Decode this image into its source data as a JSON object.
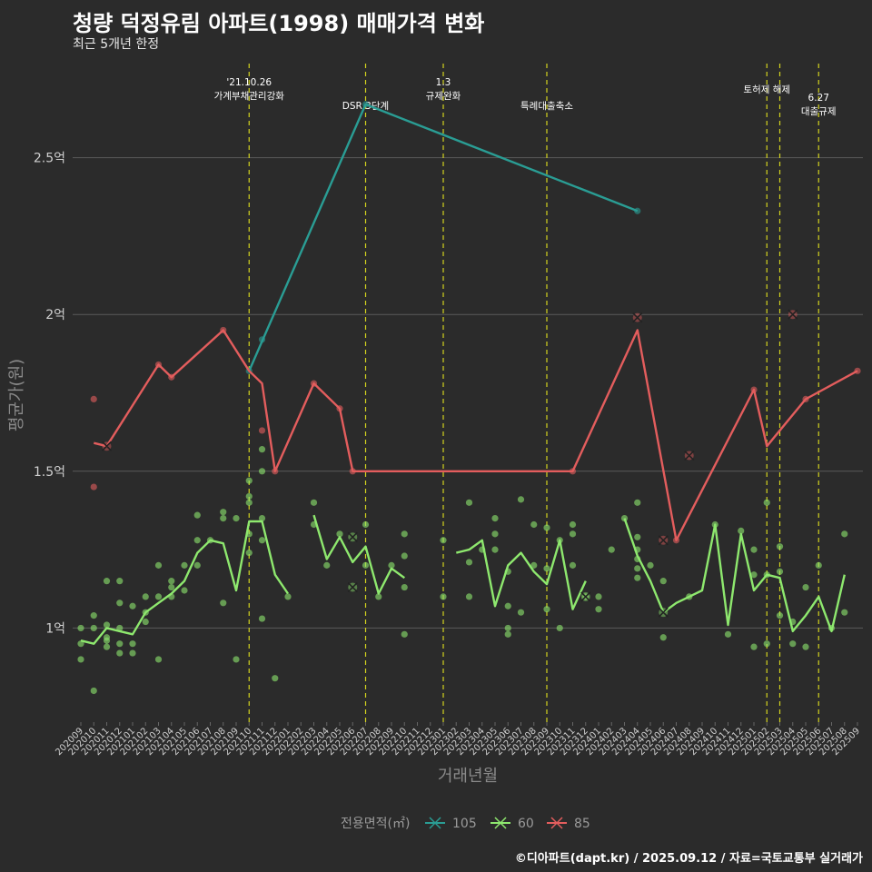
{
  "header": {
    "title": "청량 덕정유림 아파트(1998) 매매가격 변화",
    "subtitle": "최근 5개년 한정"
  },
  "footer": "©디아파트(dapt.kr) / 2025.09.12 / 자료=국토교통부 실거래가",
  "chart_data": {
    "type": "line",
    "xlabel": "거래년월",
    "ylabel": "평균가(원)",
    "ylim": [
      0.7,
      2.8
    ],
    "yticks": [
      {
        "v": 1.0,
        "label": "1억"
      },
      {
        "v": 1.5,
        "label": "1.5억"
      },
      {
        "v": 2.0,
        "label": "2억"
      },
      {
        "v": 2.5,
        "label": "2.5억"
      }
    ],
    "categories": [
      "202009",
      "202010",
      "202011",
      "202012",
      "202101",
      "202102",
      "202103",
      "202104",
      "202105",
      "202106",
      "202107",
      "202108",
      "202109",
      "202110",
      "202111",
      "202112",
      "202201",
      "202202",
      "202203",
      "202204",
      "202205",
      "202206",
      "202207",
      "202208",
      "202209",
      "202210",
      "202211",
      "202212",
      "202301",
      "202302",
      "202303",
      "202304",
      "202305",
      "202306",
      "202307",
      "202308",
      "202309",
      "202310",
      "202311",
      "202312",
      "202401",
      "202402",
      "202403",
      "202404",
      "202405",
      "202406",
      "202407",
      "202408",
      "202409",
      "202410",
      "202411",
      "202412",
      "202501",
      "202502",
      "202503",
      "202504",
      "202505",
      "202506",
      "202507",
      "202508",
      "202509"
    ],
    "annotations": [
      {
        "x": "202110",
        "lines": [
          "'21.10.26",
          "가계부채관리강화"
        ],
        "level": 0
      },
      {
        "x": "202207",
        "lines": [
          "DSR 3단계"
        ],
        "level": 2
      },
      {
        "x": "202301",
        "lines": [
          "1.3",
          "규제완화"
        ],
        "level": 0
      },
      {
        "x": "202309",
        "lines": [
          "특례대출축소"
        ],
        "level": 2
      },
      {
        "x": "202502",
        "lines": [
          "토허제 해제"
        ],
        "level": 1
      },
      {
        "x": "202503",
        "lines": [],
        "level": 0
      },
      {
        "x": "202506",
        "lines": [
          "6.27",
          "대출규제"
        ],
        "level": 3
      }
    ],
    "legend": {
      "title": "전용면적(㎡)",
      "position": "bottom"
    },
    "series": [
      {
        "name": "105",
        "color": "#2a9d94",
        "line": [
          [
            "202110",
            1.82
          ],
          [
            "202207",
            2.67
          ],
          [
            "202404",
            2.33
          ]
        ],
        "points": [
          [
            "202110",
            1.82
          ],
          [
            "202111",
            1.92
          ],
          [
            "202207",
            2.67
          ],
          [
            "202404",
            2.33
          ]
        ],
        "crosses": []
      },
      {
        "name": "60",
        "color": "#8ee86e",
        "line": [
          [
            "202009",
            0.96
          ],
          [
            "202010",
            0.95
          ],
          [
            "202011",
            1.0
          ],
          [
            "202012",
            0.99
          ],
          [
            "202101",
            0.98
          ],
          [
            "202102",
            1.05
          ],
          [
            "202103",
            1.08
          ],
          [
            "202104",
            1.11
          ],
          [
            "202105",
            1.15
          ],
          [
            "202106",
            1.24
          ],
          [
            "202107",
            1.28
          ],
          [
            "202108",
            1.27
          ],
          [
            "202109",
            1.12
          ],
          [
            "202110",
            1.34
          ],
          [
            "202111",
            1.34
          ],
          [
            "202112",
            1.17
          ],
          [
            "202201",
            1.11
          ],
          null,
          [
            "202203",
            1.36
          ],
          [
            "202204",
            1.22
          ],
          [
            "202205",
            1.29
          ],
          [
            "202206",
            1.21
          ],
          [
            "202207",
            1.26
          ],
          [
            "202208",
            1.11
          ],
          [
            "202209",
            1.19
          ],
          [
            "202210",
            1.16
          ],
          null,
          null,
          null,
          [
            "202302",
            1.24
          ],
          [
            "202303",
            1.25
          ],
          [
            "202304",
            1.28
          ],
          [
            "202305",
            1.07
          ],
          [
            "202306",
            1.2
          ],
          [
            "202307",
            1.24
          ],
          [
            "202308",
            1.18
          ],
          [
            "202309",
            1.14
          ],
          [
            "202310",
            1.28
          ],
          [
            "202311",
            1.06
          ],
          [
            "202312",
            1.15
          ],
          null,
          null,
          [
            "202403",
            1.35
          ],
          [
            "202404",
            1.23
          ],
          [
            "202405",
            1.15
          ],
          [
            "202406",
            1.05
          ],
          [
            "202407",
            1.08
          ],
          [
            "202408",
            1.1
          ],
          [
            "202409",
            1.12
          ],
          [
            "202410",
            1.33
          ],
          [
            "202411",
            1.01
          ],
          [
            "202412",
            1.3
          ],
          [
            "202501",
            1.12
          ],
          [
            "202502",
            1.17
          ],
          [
            "202503",
            1.16
          ],
          [
            "202504",
            0.99
          ],
          [
            "202505",
            1.04
          ],
          [
            "202506",
            1.1
          ],
          [
            "202507",
            0.99
          ],
          [
            "202508",
            1.17
          ]
        ],
        "points": [
          [
            "202009",
            1.0
          ],
          [
            "202009",
            0.95
          ],
          [
            "202009",
            0.9
          ],
          [
            "202010",
            1.04
          ],
          [
            "202010",
            0.8
          ],
          [
            "202010",
            1.0
          ],
          [
            "202011",
            1.15
          ],
          [
            "202011",
            0.96
          ],
          [
            "202011",
            0.94
          ],
          [
            "202011",
            1.01
          ],
          [
            "202011",
            0.97
          ],
          [
            "202012",
            1.15
          ],
          [
            "202012",
            1.08
          ],
          [
            "202012",
            1.0
          ],
          [
            "202012",
            0.92
          ],
          [
            "202012",
            0.95
          ],
          [
            "202101",
            1.07
          ],
          [
            "202101",
            0.95
          ],
          [
            "202101",
            0.92
          ],
          [
            "202102",
            1.1
          ],
          [
            "202102",
            1.05
          ],
          [
            "202102",
            1.02
          ],
          [
            "202103",
            1.2
          ],
          [
            "202103",
            1.1
          ],
          [
            "202103",
            0.9
          ],
          [
            "202104",
            1.13
          ],
          [
            "202104",
            1.1
          ],
          [
            "202104",
            1.15
          ],
          [
            "202105",
            1.2
          ],
          [
            "202105",
            1.12
          ],
          [
            "202106",
            1.36
          ],
          [
            "202106",
            1.28
          ],
          [
            "202106",
            1.2
          ],
          [
            "202107",
            1.28
          ],
          [
            "202108",
            1.37
          ],
          [
            "202108",
            1.35
          ],
          [
            "202108",
            1.08
          ],
          [
            "202109",
            1.35
          ],
          [
            "202109",
            0.9
          ],
          [
            "202110",
            1.47
          ],
          [
            "202110",
            1.42
          ],
          [
            "202110",
            1.4
          ],
          [
            "202110",
            1.3
          ],
          [
            "202110",
            1.24
          ],
          [
            "202111",
            1.57
          ],
          [
            "202111",
            1.5
          ],
          [
            "202111",
            1.35
          ],
          [
            "202111",
            1.28
          ],
          [
            "202111",
            1.03
          ],
          [
            "202112",
            0.84
          ],
          [
            "202201",
            1.1
          ],
          [
            "202203",
            1.4
          ],
          [
            "202203",
            1.33
          ],
          [
            "202204",
            1.2
          ],
          [
            "202205",
            1.3
          ],
          [
            "202207",
            1.33
          ],
          [
            "202207",
            1.2
          ],
          [
            "202208",
            1.1
          ],
          [
            "202209",
            1.2
          ],
          [
            "202210",
            1.3
          ],
          [
            "202210",
            1.23
          ],
          [
            "202210",
            1.13
          ],
          [
            "202210",
            0.98
          ],
          [
            "202301",
            1.28
          ],
          [
            "202301",
            1.1
          ],
          [
            "202303",
            1.4
          ],
          [
            "202303",
            1.21
          ],
          [
            "202303",
            1.1
          ],
          [
            "202304",
            1.25
          ],
          [
            "202305",
            1.35
          ],
          [
            "202305",
            1.3
          ],
          [
            "202305",
            1.25
          ],
          [
            "202306",
            1.18
          ],
          [
            "202306",
            1.07
          ],
          [
            "202306",
            1.0
          ],
          [
            "202306",
            0.98
          ],
          [
            "202307",
            1.41
          ],
          [
            "202307",
            1.05
          ],
          [
            "202308",
            1.33
          ],
          [
            "202308",
            1.2
          ],
          [
            "202309",
            1.32
          ],
          [
            "202309",
            1.19
          ],
          [
            "202309",
            1.06
          ],
          [
            "202310",
            1.28
          ],
          [
            "202310",
            1.0
          ],
          [
            "202311",
            1.33
          ],
          [
            "202311",
            1.3
          ],
          [
            "202311",
            1.2
          ],
          [
            "202312",
            1.1
          ],
          [
            "202401",
            1.1
          ],
          [
            "202401",
            1.06
          ],
          [
            "202402",
            1.25
          ],
          [
            "202403",
            1.35
          ],
          [
            "202404",
            1.4
          ],
          [
            "202404",
            1.29
          ],
          [
            "202404",
            1.25
          ],
          [
            "202404",
            1.22
          ],
          [
            "202404",
            1.19
          ],
          [
            "202404",
            1.16
          ],
          [
            "202405",
            1.2
          ],
          [
            "202406",
            1.15
          ],
          [
            "202406",
            0.97
          ],
          [
            "202408",
            1.1
          ],
          [
            "202410",
            1.33
          ],
          [
            "202411",
            0.98
          ],
          [
            "202412",
            1.31
          ],
          [
            "202501",
            1.25
          ],
          [
            "202501",
            1.17
          ],
          [
            "202501",
            0.94
          ],
          [
            "202502",
            1.4
          ],
          [
            "202502",
            1.17
          ],
          [
            "202502",
            0.95
          ],
          [
            "202503",
            1.26
          ],
          [
            "202503",
            1.18
          ],
          [
            "202503",
            1.04
          ],
          [
            "202504",
            0.95
          ],
          [
            "202504",
            1.02
          ],
          [
            "202505",
            1.13
          ],
          [
            "202505",
            0.94
          ],
          [
            "202506",
            1.2
          ],
          [
            "202507",
            1.0
          ],
          [
            "202508",
            1.3
          ],
          [
            "202508",
            1.05
          ]
        ],
        "crosses": [
          [
            "202206",
            1.29
          ],
          [
            "202206",
            1.13
          ],
          [
            "202312",
            1.1
          ],
          [
            "202406",
            1.05
          ]
        ]
      },
      {
        "name": "85",
        "color": "#e35d5d",
        "line": [
          [
            "202010",
            1.59
          ],
          [
            "202011",
            1.58
          ],
          [
            "202103",
            1.84
          ],
          [
            "202104",
            1.8
          ],
          [
            "202108",
            1.95
          ],
          [
            "202110",
            1.82
          ],
          [
            "202111",
            1.78
          ],
          [
            "202112",
            1.5
          ],
          [
            "202203",
            1.78
          ],
          [
            "202205",
            1.7
          ],
          [
            "202206",
            1.5
          ],
          [
            "202311",
            1.5
          ],
          [
            "202404",
            1.95
          ],
          [
            "202407",
            1.28
          ],
          [
            "202501",
            1.76
          ],
          [
            "202502",
            1.58
          ],
          [
            "202505",
            1.73
          ],
          [
            "202509",
            1.82
          ]
        ],
        "points": [
          [
            "202010",
            1.73
          ],
          [
            "202010",
            1.45
          ],
          [
            "202103",
            1.84
          ],
          [
            "202104",
            1.8
          ],
          [
            "202108",
            1.95
          ],
          [
            "202111",
            1.63
          ],
          [
            "202112",
            1.5
          ],
          [
            "202203",
            1.78
          ],
          [
            "202205",
            1.7
          ],
          [
            "202206",
            1.5
          ],
          [
            "202311",
            1.5
          ],
          [
            "202407",
            1.28
          ],
          [
            "202501",
            1.76
          ],
          [
            "202505",
            1.73
          ],
          [
            "202509",
            1.82
          ]
        ],
        "crosses": [
          [
            "202011",
            1.58
          ],
          [
            "202404",
            1.99
          ],
          [
            "202406",
            1.28
          ],
          [
            "202408",
            1.55
          ],
          [
            "202504",
            2.0
          ]
        ]
      }
    ]
  }
}
